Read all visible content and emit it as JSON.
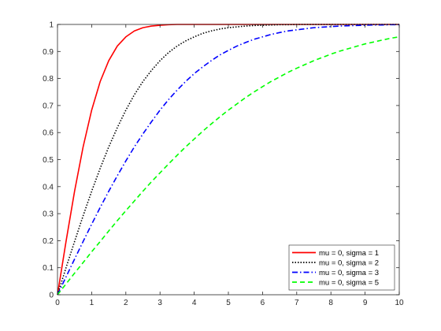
{
  "chart_data": {
    "type": "line",
    "title": "",
    "xlabel": "",
    "ylabel": "",
    "xlim": [
      0,
      10
    ],
    "ylim": [
      0,
      1
    ],
    "xticks": [
      0,
      1,
      2,
      3,
      4,
      5,
      6,
      7,
      8,
      9,
      10
    ],
    "yticks": [
      0,
      0.1,
      0.2,
      0.3,
      0.4,
      0.5,
      0.6,
      0.7,
      0.8,
      0.9,
      1
    ],
    "grid": false,
    "legend_position": "bottom-right",
    "x": [
      0,
      0.25,
      0.5,
      0.75,
      1,
      1.25,
      1.5,
      1.75,
      2,
      2.25,
      2.5,
      2.75,
      3,
      3.25,
      3.5,
      3.75,
      4,
      4.25,
      4.5,
      4.75,
      5,
      5.25,
      5.5,
      5.75,
      6,
      6.25,
      6.5,
      6.75,
      7,
      7.25,
      7.5,
      7.75,
      8,
      8.25,
      8.5,
      8.75,
      9,
      9.25,
      9.5,
      9.75,
      10
    ],
    "series": [
      {
        "name": "mu = 0, sigma = 1",
        "color": "#ff0000",
        "dash": "solid",
        "values": [
          0,
          0.197,
          0.383,
          0.547,
          0.683,
          0.789,
          0.866,
          0.92,
          0.954,
          0.976,
          0.988,
          0.994,
          0.997,
          0.999,
          1.0,
          1.0,
          1.0,
          1.0,
          1.0,
          1.0,
          1.0,
          1.0,
          1.0,
          1.0,
          1.0,
          1.0,
          1.0,
          1.0,
          1.0,
          1.0,
          1.0,
          1.0,
          1.0,
          1.0,
          1.0,
          1.0,
          1.0,
          1.0,
          1.0,
          1.0,
          1.0
        ]
      },
      {
        "name": "mu = 0, sigma = 2",
        "color": "#000000",
        "dash": "dotted",
        "values": [
          0,
          0.1,
          0.197,
          0.292,
          0.383,
          0.468,
          0.547,
          0.618,
          0.683,
          0.74,
          0.789,
          0.83,
          0.866,
          0.896,
          0.92,
          0.939,
          0.954,
          0.967,
          0.976,
          0.983,
          0.988,
          0.991,
          0.994,
          0.996,
          0.997,
          0.998,
          0.999,
          0.999,
          1.0,
          1.0,
          1.0,
          1.0,
          1.0,
          1.0,
          1.0,
          1.0,
          1.0,
          1.0,
          1.0,
          1.0,
          1.0
        ]
      },
      {
        "name": "mu = 0, sigma = 3",
        "color": "#0000ff",
        "dash": "dashdot",
        "values": [
          0,
          0.066,
          0.132,
          0.197,
          0.261,
          0.323,
          0.383,
          0.44,
          0.495,
          0.547,
          0.595,
          0.64,
          0.683,
          0.722,
          0.757,
          0.789,
          0.818,
          0.843,
          0.866,
          0.887,
          0.904,
          0.92,
          0.933,
          0.945,
          0.954,
          0.963,
          0.97,
          0.976,
          0.98,
          0.984,
          0.988,
          0.99,
          0.992,
          0.994,
          0.995,
          0.996,
          0.997,
          0.998,
          0.998,
          0.999,
          0.999
        ]
      },
      {
        "name": "mu = 0, sigma = 5",
        "color": "#00ff00",
        "dash": "dashed",
        "values": [
          0,
          0.04,
          0.08,
          0.119,
          0.159,
          0.197,
          0.236,
          0.274,
          0.311,
          0.347,
          0.383,
          0.418,
          0.451,
          0.484,
          0.516,
          0.547,
          0.576,
          0.605,
          0.632,
          0.658,
          0.683,
          0.706,
          0.729,
          0.75,
          0.77,
          0.789,
          0.806,
          0.823,
          0.838,
          0.852,
          0.866,
          0.878,
          0.89,
          0.901,
          0.91,
          0.919,
          0.928,
          0.935,
          0.942,
          0.949,
          0.954
        ]
      }
    ]
  }
}
